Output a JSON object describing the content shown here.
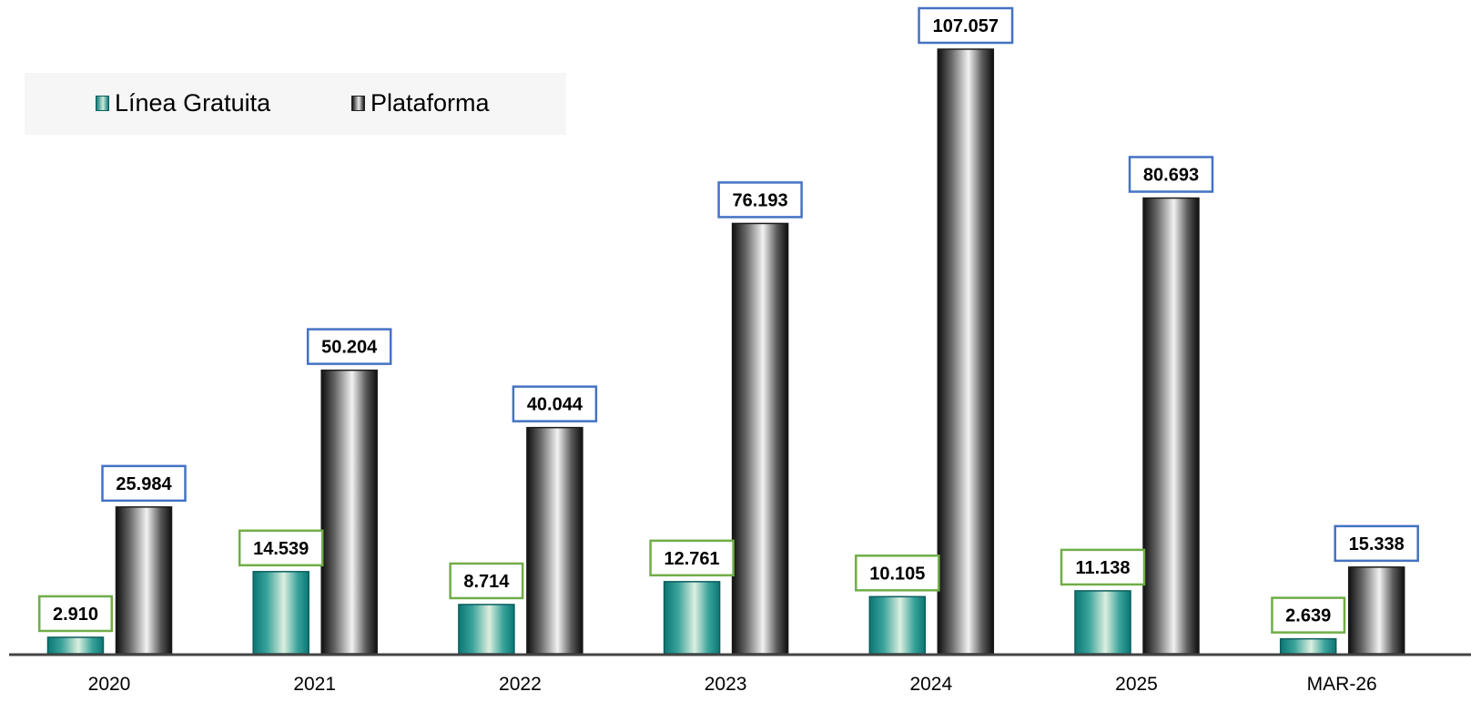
{
  "chart_data": {
    "type": "bar",
    "categories": [
      "2020",
      "2021",
      "2022",
      "2023",
      "2024",
      "2025",
      "MAR-26"
    ],
    "series": [
      {
        "name": "Línea Gratuita",
        "values": [
          2910,
          14539,
          8714,
          12761,
          10105,
          11138,
          2639
        ],
        "labels": [
          "2.910",
          "14.539",
          "8.714",
          "12.761",
          "10.105",
          "11.138",
          "2.639"
        ],
        "color": "#128a88",
        "label_border": "#70ad47"
      },
      {
        "name": "Plataforma",
        "values": [
          25984,
          50204,
          40044,
          76193,
          107057,
          80693,
          15338
        ],
        "labels": [
          "25.984",
          "50.204",
          "40.044",
          "76.193",
          "107.057",
          "80.693",
          "15.338"
        ],
        "color": "#222222",
        "label_border": "#4472c4"
      }
    ],
    "ylim": [
      0,
      107057
    ],
    "grid": false,
    "legend": "top-left"
  }
}
